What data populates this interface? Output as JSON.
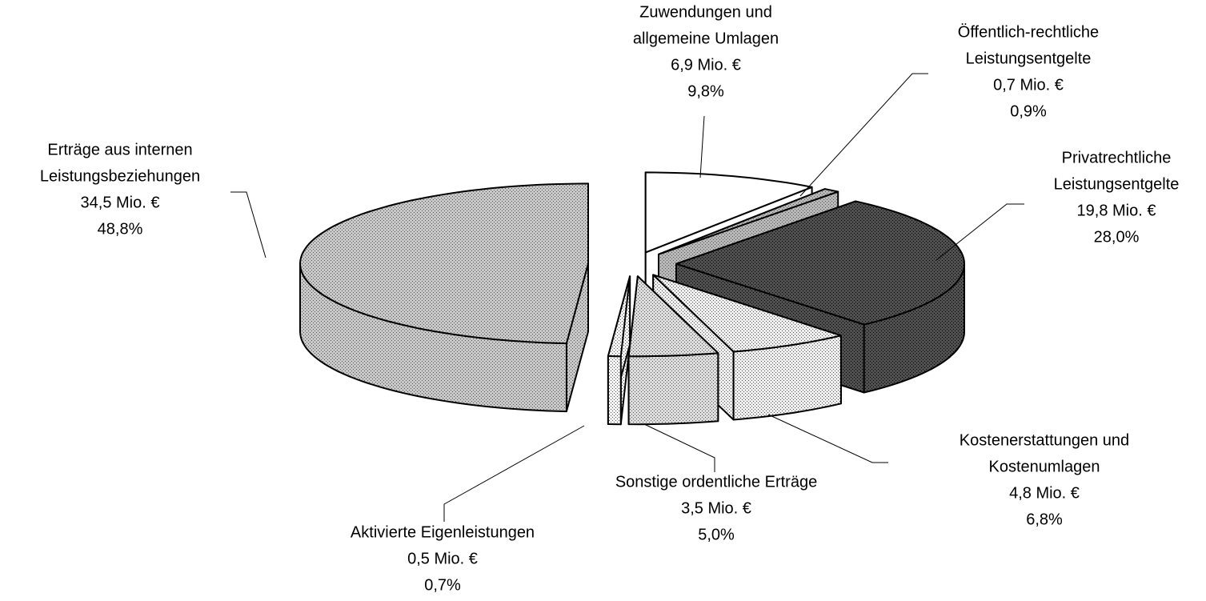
{
  "chart_data": {
    "type": "pie3d",
    "labels": [
      [
        "Zuwendungen und",
        "allgemeine Umlagen"
      ],
      [
        "Öffentlich-rechtliche",
        "Leistungsentgelte"
      ],
      [
        "Privatrechtliche",
        "Leistungsentgelte"
      ],
      [
        "Kostenerstattungen und",
        "Kostenumlagen"
      ],
      [
        "Sonstige ordentliche Erträge"
      ],
      [
        "Aktivierte Eigenleistungen"
      ],
      [
        "Erträge aus internen",
        "Leistungsbeziehungen"
      ]
    ],
    "values": [
      9.8,
      0.9,
      28.0,
      6.8,
      5.0,
      0.7,
      48.8
    ],
    "value_labels": [
      "9,8%",
      "0,9%",
      "28,0%",
      "6,8%",
      "5,0%",
      "0,7%",
      "48,8%"
    ],
    "amounts": [
      6.9,
      0.7,
      19.8,
      4.8,
      3.5,
      0.5,
      34.5
    ],
    "amount_labels": [
      "6,9 Mio. €",
      "0,7 Mio. €",
      "19,8 Mio. €",
      "4,8 Mio. €",
      "3,5 Mio. €",
      "0,5 Mio. €",
      "34,5 Mio. €"
    ],
    "colors": [
      "#ffffff",
      "#b8b8b8",
      "#505050",
      "#eeeeee",
      "#dddddd",
      "#f4f4f4",
      "#c8c8c8"
    ]
  }
}
